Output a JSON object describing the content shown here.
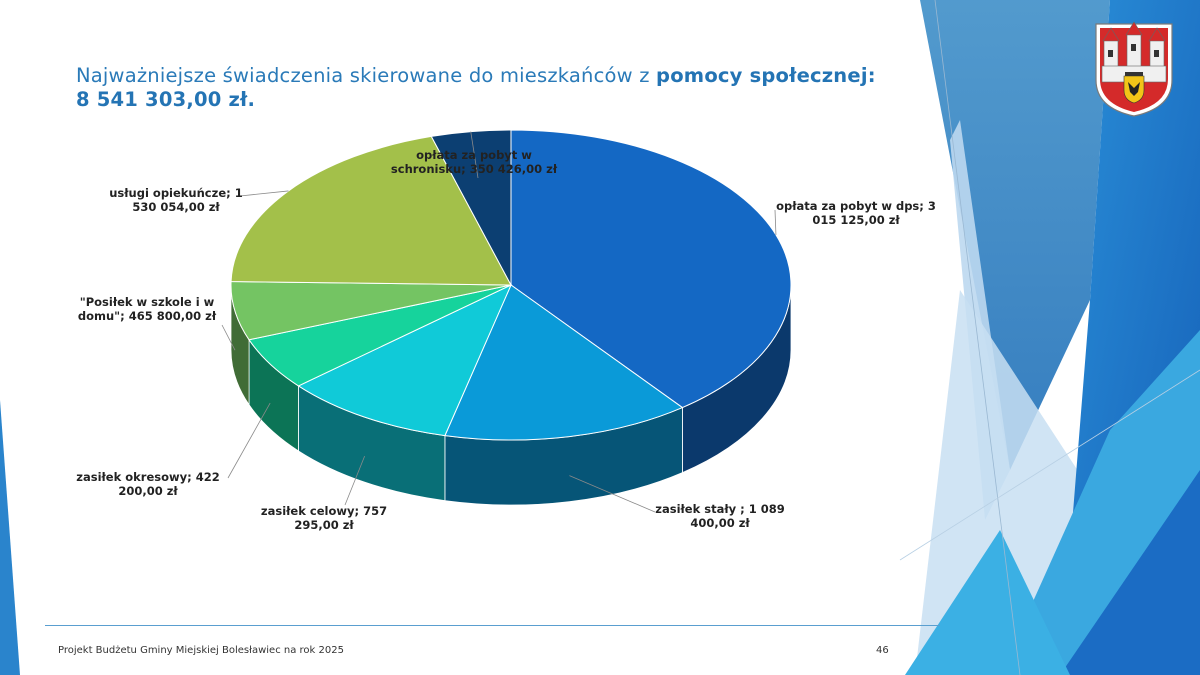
{
  "slide": {
    "title_prefix": "Najważniejsze świadczenia skierowane do mieszkańców z ",
    "title_strong": "pomocy społecznej:",
    "title_total": "8 541 303,00 zł.",
    "footer": "Projekt Budżetu Gminy Miejskiej Bolesławiec na rok 2025",
    "page_number": "46"
  },
  "colors": {
    "title": "#2a7ab8",
    "accent_dark": "#1a6fc0",
    "accent_light": "#3aa8e0"
  },
  "chart_data": {
    "type": "pie",
    "title": "",
    "total": 8541303.0,
    "slices": [
      {
        "label": "opłata za pobyt w dps; 3 015 125,00 zł",
        "value": 3015125.0,
        "color": "#1468c4"
      },
      {
        "label": "zasiłek stały ; 1 089 400,00 zł",
        "value": 1089400.0,
        "color": "#0a9ad8"
      },
      {
        "label": "zasiłek celowy; 757 295,00 zł",
        "value": 757295.0,
        "color": "#10cad8"
      },
      {
        "label": "zasiłek okresowy; 422 200,00 zł",
        "value": 422200.0,
        "color": "#16d39c"
      },
      {
        "label": "\"Posiłek w szkole i w domu\"; 465 800,00 zł",
        "value": 465800.0,
        "color": "#74c463"
      },
      {
        "label": "usługi opiekuńcze; 1 530 054,00 zł",
        "value": 1530054.0,
        "color": "#a3c04a"
      },
      {
        "label": "opłata za pobyt w schronisku; 350 426,00 zł",
        "value": 350426.0,
        "color": "#0c3f72"
      }
    ],
    "legend": "none",
    "data_labels": true
  }
}
